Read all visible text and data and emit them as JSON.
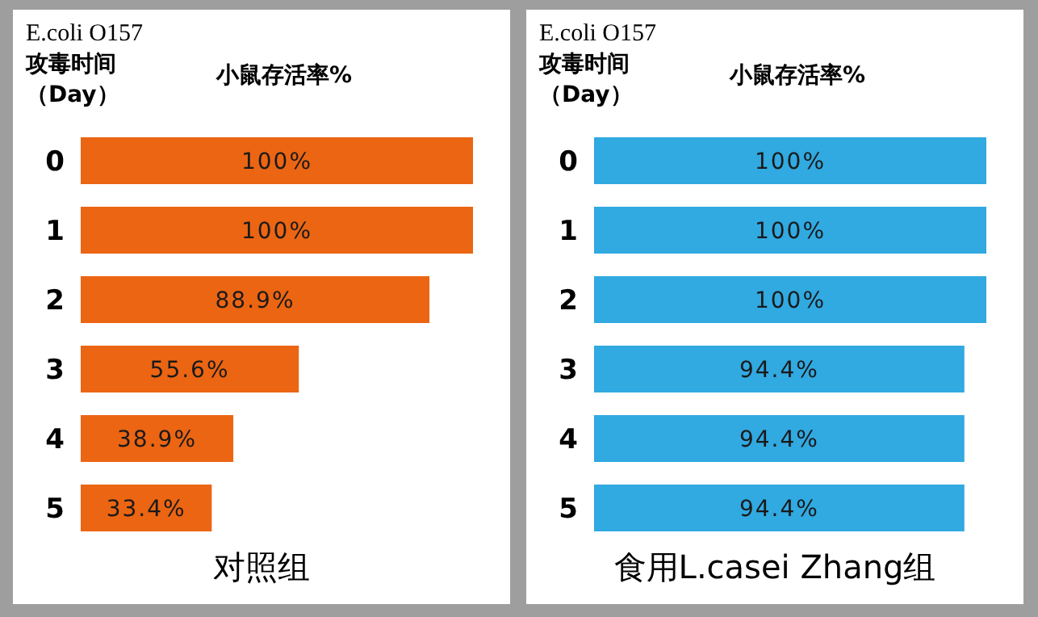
{
  "chart_data": [
    {
      "type": "bar",
      "orientation": "horizontal",
      "title": "对照组",
      "xlabel": "小鼠存活率%",
      "ylabel": "E.coli O157\n攻毒时间（Day）",
      "categories": [
        "0",
        "1",
        "2",
        "3",
        "4",
        "5"
      ],
      "values": [
        100,
        100,
        88.9,
        55.6,
        38.9,
        33.4
      ],
      "color": "#eb6513",
      "value_labels": [
        "100%",
        "100%",
        "88.9%",
        "55.6%",
        "38.9%",
        "33.4%"
      ]
    },
    {
      "type": "bar",
      "orientation": "horizontal",
      "title": "食用L.casei Zhang组",
      "xlabel": "小鼠存活率%",
      "ylabel": "E.coli O157\n攻毒时间（Day）",
      "categories": [
        "0",
        "1",
        "2",
        "3",
        "4",
        "5"
      ],
      "values": [
        100,
        100,
        100,
        94.4,
        94.4,
        94.4
      ],
      "color": "#31a9e1",
      "value_labels": [
        "100%",
        "100%",
        "100%",
        "94.4%",
        "94.4%",
        "94.4%"
      ]
    }
  ]
}
